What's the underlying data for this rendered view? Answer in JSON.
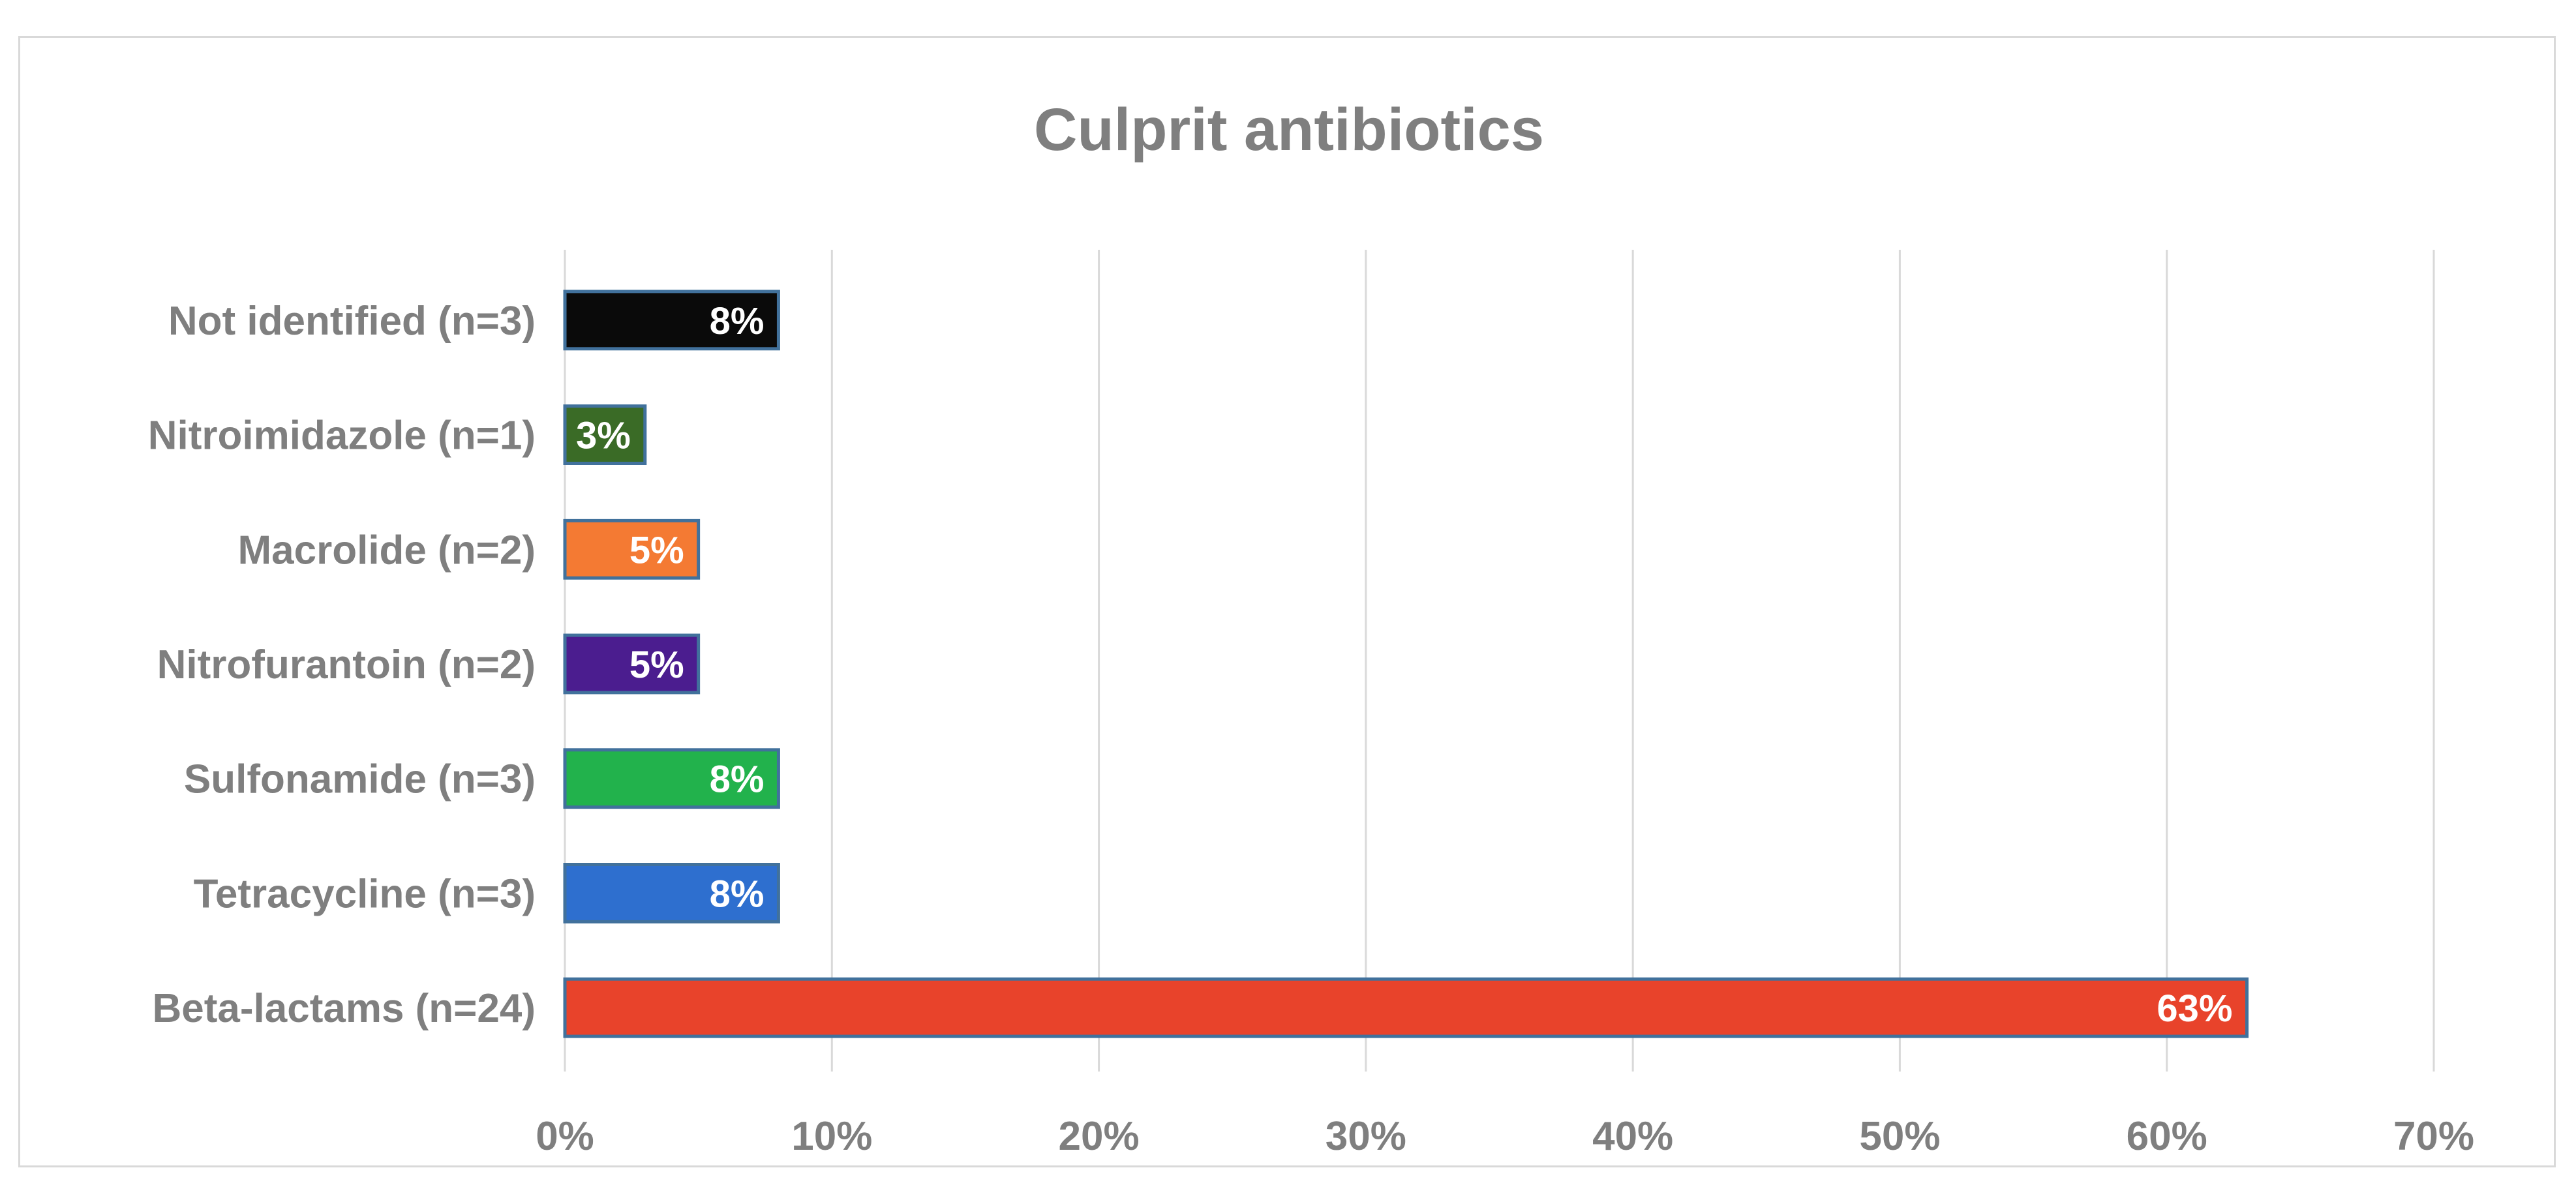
{
  "chart_data": {
    "type": "bar",
    "orientation": "horizontal",
    "title": "Culprit antibiotics",
    "xlabel": "",
    "ylabel": "",
    "xlim": [
      0,
      70
    ],
    "x_ticks": [
      0,
      10,
      20,
      30,
      40,
      50,
      60,
      70
    ],
    "tick_format": "{v}%",
    "grid": true,
    "legend": "none",
    "categories": [
      "Beta-lactams (n=24)",
      "Tetracycline (n=3)",
      "Sulfonamide (n=3)",
      "Nitrofurantoin (n=2)",
      "Macrolide (n=2)",
      "Nitroimidazole (n=1)",
      "Not identified (n=3)"
    ],
    "values": [
      63,
      8,
      8,
      5,
      5,
      3,
      8
    ],
    "data_labels": [
      "63%",
      "8%",
      "8%",
      "5%",
      "5%",
      "3%",
      "8%"
    ],
    "colors": [
      "#e8432b",
      "#2e6fcf",
      "#22b24c",
      "#4b1d8f",
      "#f47a33",
      "#3a6b26",
      "#0a0a0a"
    ],
    "bar_edge_color": "#41719c",
    "gridline_color": "#d9d9d9",
    "text_color": "#7f7f7f"
  }
}
